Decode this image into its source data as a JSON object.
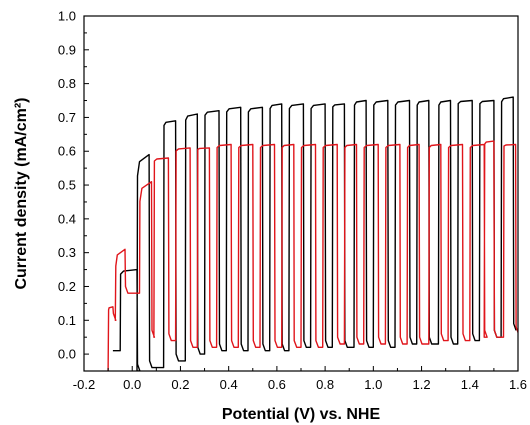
{
  "chart_data": {
    "type": "line",
    "title": "",
    "xlabel": "Potential (V) vs. NHE",
    "ylabel": "Current density (mA/cm²)",
    "xlim": [
      -0.2,
      1.6
    ],
    "ylim": [
      -0.05,
      1.0
    ],
    "x_ticks": [
      "-0.2",
      "0.0",
      "0.2",
      "0.4",
      "0.6",
      "0.8",
      "1.0",
      "1.2",
      "1.4",
      "1.6"
    ],
    "y_ticks": [
      "0.0",
      "0.1",
      "0.2",
      "0.3",
      "0.4",
      "0.5",
      "0.6",
      "0.7",
      "0.8",
      "0.9",
      "1.0"
    ],
    "grid": false,
    "legend": "none",
    "series": [
      {
        "color": "#000000",
        "style": "chopped-light",
        "start_x": -0.08,
        "start_y": 0.01,
        "pulses": [
          {
            "x_on": -0.05,
            "x_off": 0.02,
            "on_start": 0.22,
            "on_end": 0.25,
            "dark": -0.05
          },
          {
            "x_on": 0.02,
            "x_off": 0.07,
            "on_start": 0.45,
            "on_end": 0.59,
            "dark": -0.04
          },
          {
            "x_on": 0.13,
            "x_off": 0.18,
            "on_start": 0.66,
            "on_end": 0.69,
            "dark": -0.02
          },
          {
            "x_on": 0.22,
            "x_off": 0.27,
            "on_start": 0.67,
            "on_end": 0.71,
            "dark": 0.0
          },
          {
            "x_on": 0.3,
            "x_off": 0.36,
            "on_start": 0.69,
            "on_end": 0.72,
            "dark": 0.01
          },
          {
            "x_on": 0.39,
            "x_off": 0.45,
            "on_start": 0.7,
            "on_end": 0.73,
            "dark": 0.01
          },
          {
            "x_on": 0.48,
            "x_off": 0.54,
            "on_start": 0.7,
            "on_end": 0.73,
            "dark": 0.01
          },
          {
            "x_on": 0.57,
            "x_off": 0.62,
            "on_start": 0.71,
            "on_end": 0.74,
            "dark": 0.01
          },
          {
            "x_on": 0.65,
            "x_off": 0.71,
            "on_start": 0.71,
            "on_end": 0.74,
            "dark": 0.02
          },
          {
            "x_on": 0.74,
            "x_off": 0.8,
            "on_start": 0.71,
            "on_end": 0.74,
            "dark": 0.02
          },
          {
            "x_on": 0.83,
            "x_off": 0.88,
            "on_start": 0.72,
            "on_end": 0.74,
            "dark": 0.02
          },
          {
            "x_on": 0.92,
            "x_off": 0.97,
            "on_start": 0.72,
            "on_end": 0.75,
            "dark": 0.02
          },
          {
            "x_on": 1.0,
            "x_off": 1.06,
            "on_start": 0.72,
            "on_end": 0.75,
            "dark": 0.02
          },
          {
            "x_on": 1.09,
            "x_off": 1.15,
            "on_start": 0.72,
            "on_end": 0.75,
            "dark": 0.03
          },
          {
            "x_on": 1.18,
            "x_off": 1.23,
            "on_start": 0.72,
            "on_end": 0.75,
            "dark": 0.03
          },
          {
            "x_on": 1.27,
            "x_off": 1.32,
            "on_start": 0.72,
            "on_end": 0.75,
            "dark": 0.03
          },
          {
            "x_on": 1.35,
            "x_off": 1.41,
            "on_start": 0.73,
            "on_end": 0.75,
            "dark": 0.04
          },
          {
            "x_on": 1.44,
            "x_off": 1.5,
            "on_start": 0.73,
            "on_end": 0.75,
            "dark": 0.05
          },
          {
            "x_on": 1.53,
            "x_off": 1.58,
            "on_start": 0.73,
            "on_end": 0.76,
            "dark": 0.07
          }
        ]
      },
      {
        "color": "#e0151b",
        "style": "chopped-light",
        "start_x": -0.1,
        "start_y": -0.05,
        "pulses": [
          {
            "x_on": -0.1,
            "x_off": -0.08,
            "on_start": 0.12,
            "on_end": 0.14,
            "dark": 0.1
          },
          {
            "x_on": -0.07,
            "x_off": -0.03,
            "on_start": 0.2,
            "on_end": 0.31,
            "dark": 0.18
          },
          {
            "x_on": 0.03,
            "x_off": 0.08,
            "on_start": 0.38,
            "on_end": 0.51,
            "dark": 0.05
          },
          {
            "x_on": 0.09,
            "x_off": 0.15,
            "on_start": 0.56,
            "on_end": 0.58,
            "dark": 0.04
          },
          {
            "x_on": 0.18,
            "x_off": 0.24,
            "on_start": 0.59,
            "on_end": 0.61,
            "dark": 0.02
          },
          {
            "x_on": 0.27,
            "x_off": 0.32,
            "on_start": 0.6,
            "on_end": 0.61,
            "dark": 0.02
          },
          {
            "x_on": 0.35,
            "x_off": 0.41,
            "on_start": 0.6,
            "on_end": 0.62,
            "dark": 0.02
          },
          {
            "x_on": 0.44,
            "x_off": 0.5,
            "on_start": 0.6,
            "on_end": 0.62,
            "dark": 0.02
          },
          {
            "x_on": 0.53,
            "x_off": 0.59,
            "on_start": 0.6,
            "on_end": 0.62,
            "dark": 0.02
          },
          {
            "x_on": 0.62,
            "x_off": 0.67,
            "on_start": 0.6,
            "on_end": 0.62,
            "dark": 0.02
          },
          {
            "x_on": 0.7,
            "x_off": 0.76,
            "on_start": 0.6,
            "on_end": 0.62,
            "dark": 0.02
          },
          {
            "x_on": 0.79,
            "x_off": 0.85,
            "on_start": 0.6,
            "on_end": 0.62,
            "dark": 0.03
          },
          {
            "x_on": 0.88,
            "x_off": 0.93,
            "on_start": 0.6,
            "on_end": 0.62,
            "dark": 0.03
          },
          {
            "x_on": 0.96,
            "x_off": 1.02,
            "on_start": 0.6,
            "on_end": 0.62,
            "dark": 0.03
          },
          {
            "x_on": 1.05,
            "x_off": 1.11,
            "on_start": 0.6,
            "on_end": 0.62,
            "dark": 0.03
          },
          {
            "x_on": 1.14,
            "x_off": 1.19,
            "on_start": 0.6,
            "on_end": 0.62,
            "dark": 0.03
          },
          {
            "x_on": 1.23,
            "x_off": 1.28,
            "on_start": 0.6,
            "on_end": 0.62,
            "dark": 0.04
          },
          {
            "x_on": 1.31,
            "x_off": 1.37,
            "on_start": 0.6,
            "on_end": 0.62,
            "dark": 0.04
          },
          {
            "x_on": 1.4,
            "x_off": 1.46,
            "on_start": 0.6,
            "on_end": 0.62,
            "dark": 0.05
          },
          {
            "x_on": 1.46,
            "x_off": 1.5,
            "on_start": 0.61,
            "on_end": 0.63,
            "dark": 0.05
          },
          {
            "x_on": 1.54,
            "x_off": 1.59,
            "on_start": 0.61,
            "on_end": 0.62,
            "dark": 0.06
          }
        ]
      }
    ]
  }
}
